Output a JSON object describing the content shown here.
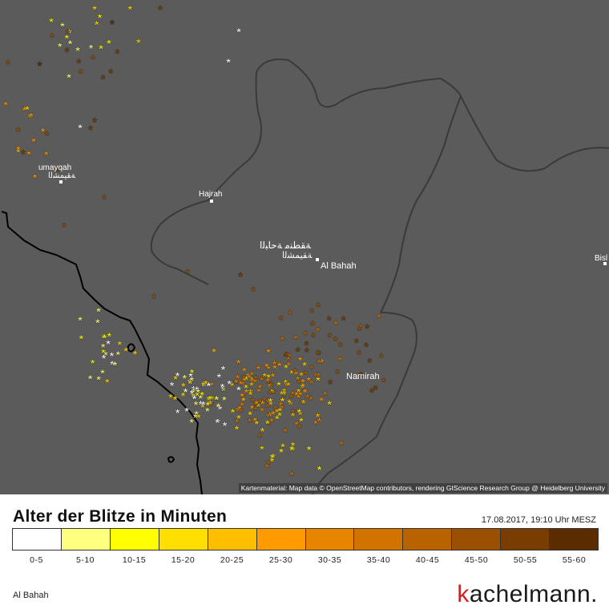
{
  "map": {
    "places": [
      {
        "name": "Hajrah"
      },
      {
        "name": "Al Bahah"
      },
      {
        "name": "Namirah"
      },
      {
        "name": "umayqah"
      },
      {
        "name": "Bisl"
      }
    ],
    "arabic_label_1": "ﺔﻘﻄﻨﻣ ﺔﺣﺎﺒﻟا",
    "arabic_label_2": "ﺔﻘﻴﻤﺸﻟا",
    "attribution": "Kartenmaterial: Map data © OpenStreetMap contributors, rendering GIScience Research Group @ Heidelberg University",
    "lightning_markers": "asterisk"
  },
  "legend": {
    "title": "Alter der Blitze in Minuten",
    "timestamp": "17.08.2017, 19:10 Uhr MESZ",
    "bins": [
      {
        "label": "0-5",
        "color": "#ffffff"
      },
      {
        "label": "5-10",
        "color": "#ffff80"
      },
      {
        "label": "10-15",
        "color": "#ffff00"
      },
      {
        "label": "15-20",
        "color": "#ffdf00"
      },
      {
        "label": "20-25",
        "color": "#ffbf00"
      },
      {
        "label": "25-30",
        "color": "#ff9a00"
      },
      {
        "label": "30-35",
        "color": "#e88500"
      },
      {
        "label": "35-40",
        "color": "#d27300"
      },
      {
        "label": "40-45",
        "color": "#b86300"
      },
      {
        "label": "45-50",
        "color": "#9a5000"
      },
      {
        "label": "50-55",
        "color": "#7a3d00"
      },
      {
        "label": "55-60",
        "color": "#5a2c00"
      }
    ]
  },
  "footer": {
    "place": "Al Bahah",
    "brand_k": "k",
    "brand_rest": "achelmann."
  }
}
